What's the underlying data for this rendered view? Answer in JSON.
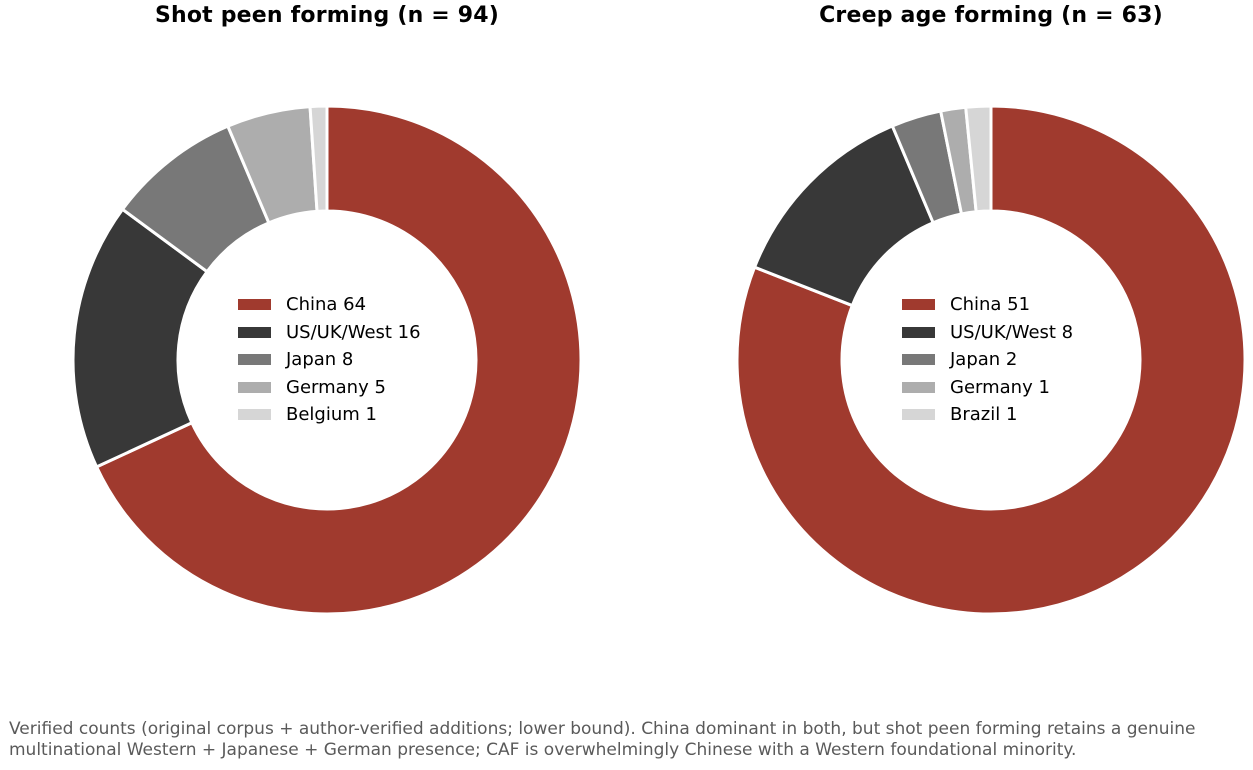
{
  "chart_data": [
    {
      "type": "pie",
      "donut": true,
      "title": "Shot peen forming (n = 94)",
      "categories": [
        "China",
        "US/UK/West",
        "Japan",
        "Germany",
        "Belgium"
      ],
      "values": [
        64,
        16,
        8,
        5,
        1
      ],
      "legend_labels": [
        "China 64",
        "US/UK/West 16",
        "Japan 8",
        "Germany 5",
        "Belgium 1"
      ],
      "colors": [
        "#a03a2e",
        "#383838",
        "#787878",
        "#adadad",
        "#d6d6d6"
      ],
      "legend_placement": "center",
      "start": "top, clockwise"
    },
    {
      "type": "pie",
      "donut": true,
      "title": "Creep age forming (n = 63)",
      "categories": [
        "China",
        "US/UK/West",
        "Japan",
        "Germany",
        "Brazil"
      ],
      "values": [
        51,
        8,
        2,
        1,
        1
      ],
      "legend_labels": [
        "China 51",
        "US/UK/West 8",
        "Japan 2",
        "Germany 1",
        "Brazil 1"
      ],
      "colors": [
        "#a03a2e",
        "#383838",
        "#787878",
        "#adadad",
        "#d6d6d6"
      ],
      "legend_placement": "center",
      "start": "top, clockwise"
    }
  ],
  "caption": "Verified counts (original corpus + author-verified additions; lower bound). China dominant in both, but shot peen forming retains a genuine multinational Western + Japanese + German presence; CAF is overwhelmingly Chinese with a Western foundational minority."
}
